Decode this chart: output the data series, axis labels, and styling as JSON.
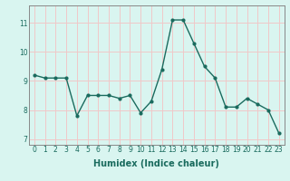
{
  "x": [
    0,
    1,
    2,
    3,
    4,
    5,
    6,
    7,
    8,
    9,
    10,
    11,
    12,
    13,
    14,
    15,
    16,
    17,
    18,
    19,
    20,
    21,
    22,
    23
  ],
  "y": [
    9.2,
    9.1,
    9.1,
    9.1,
    7.8,
    8.5,
    8.5,
    8.5,
    8.4,
    8.5,
    7.9,
    8.3,
    9.4,
    11.1,
    11.1,
    10.3,
    9.5,
    9.1,
    8.1,
    8.1,
    8.4,
    8.2,
    8.0,
    7.2
  ],
  "line_color": "#1a6b5e",
  "marker": "o",
  "marker_size": 2.0,
  "bg_color": "#d9f5f0",
  "grid_color": "#f0c8c8",
  "xlabel": "Humidex (Indice chaleur)",
  "ylim": [
    6.8,
    11.6
  ],
  "xlim": [
    -0.5,
    23.5
  ],
  "yticks": [
    7,
    8,
    9,
    10,
    11
  ],
  "xticks": [
    0,
    1,
    2,
    3,
    4,
    5,
    6,
    7,
    8,
    9,
    10,
    11,
    12,
    13,
    14,
    15,
    16,
    17,
    18,
    19,
    20,
    21,
    22,
    23
  ],
  "linewidth": 1.0,
  "xlabel_fontsize": 7.0,
  "tick_fontsize": 5.5,
  "spine_color": "#888888"
}
